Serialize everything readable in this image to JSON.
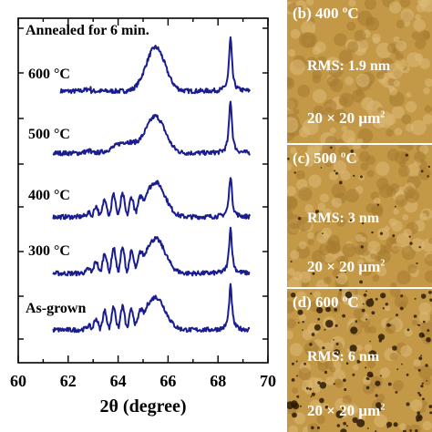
{
  "chart_data": {
    "type": "line",
    "title": "Annealed for 6 min.",
    "xlabel": "2θ (degree)",
    "ylabel": "",
    "xlim": [
      60,
      70
    ],
    "xticks": [
      "60",
      "62",
      "64",
      "66",
      "68",
      "70"
    ],
    "y_ticks_labeled": false,
    "grid": false,
    "legend": "none",
    "line_color": "#1a1d8f",
    "series": [
      {
        "name": "600 °C",
        "x_range": [
          61.7,
          69.3
        ],
        "peaks": [
          {
            "x": 65.5,
            "kind": "broad",
            "height": 48
          },
          {
            "x": 68.5,
            "kind": "sharp",
            "height": 58
          }
        ]
      },
      {
        "name": "500 °C",
        "x_range": [
          61.4,
          69.3
        ],
        "peaks": [
          {
            "x": 64.3,
            "kind": "broad",
            "height": 12
          },
          {
            "x": 65.5,
            "kind": "broad",
            "height": 40
          },
          {
            "x": 68.5,
            "kind": "sharp",
            "height": 58
          }
        ]
      },
      {
        "name": "400 °C",
        "x_range": [
          61.4,
          69.3
        ],
        "peaks": [
          {
            "x": 63.8,
            "kind": "fringes",
            "height": 25
          },
          {
            "x": 65.5,
            "kind": "broad",
            "height": 38
          },
          {
            "x": 68.5,
            "kind": "sharp",
            "height": 45
          }
        ]
      },
      {
        "name": "300 °C",
        "x_range": [
          61.4,
          69.3
        ],
        "peaks": [
          {
            "x": 63.8,
            "kind": "fringes",
            "height": 28
          },
          {
            "x": 65.5,
            "kind": "broad",
            "height": 38
          },
          {
            "x": 68.5,
            "kind": "sharp",
            "height": 50
          }
        ]
      },
      {
        "name": "As-grown",
        "x_range": [
          61.4,
          69.3
        ],
        "peaks": [
          {
            "x": 63.8,
            "kind": "fringes",
            "height": 26
          },
          {
            "x": 65.5,
            "kind": "broad",
            "height": 36
          },
          {
            "x": 68.5,
            "kind": "sharp",
            "height": 48
          }
        ]
      }
    ]
  },
  "afm_panels": [
    {
      "title": "(b) 400 ºC",
      "rms": "RMS: 1.9 nm",
      "scale": "20 × 20 μm",
      "scale_sup": "2"
    },
    {
      "title": "(c) 500 ºC",
      "rms": "RMS: 3 nm",
      "scale": "20 × 20 μm",
      "scale_sup": "2"
    },
    {
      "title": "(d) 600 ºC",
      "rms": "RMS: 6 nm",
      "scale": "20 × 20 μm",
      "scale_sup": "2"
    }
  ]
}
